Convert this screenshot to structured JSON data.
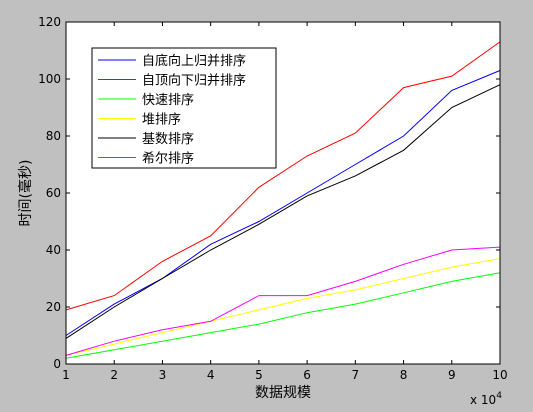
{
  "window": {
    "background": "#c0c0c0",
    "plot_background": "#ffffff"
  },
  "chart_data": {
    "type": "line",
    "title": "",
    "xlabel": "数据规模",
    "ylabel": "时间(毫秒)",
    "x_multiplier_base": "x 10",
    "x_multiplier_exp": "4",
    "x": [
      1,
      2,
      3,
      4,
      5,
      6,
      7,
      8,
      9,
      10
    ],
    "xlim": [
      1,
      10
    ],
    "ylim": [
      0,
      120
    ],
    "xticks": [
      1,
      2,
      3,
      4,
      5,
      6,
      7,
      8,
      9,
      10
    ],
    "yticks": [
      0,
      20,
      40,
      60,
      80,
      100,
      120
    ],
    "grid": false,
    "legend_position": "top-left",
    "series": [
      {
        "name": "自底向上归并排序",
        "color": "#0000ff",
        "values": [
          10,
          21,
          30,
          42,
          50,
          60,
          70,
          80,
          96,
          103
        ]
      },
      {
        "name": "自顶向下归并排序",
        "color": "#ff0000",
        "values": [
          19,
          24,
          36,
          45,
          62,
          73,
          81,
          97,
          101,
          113
        ]
      },
      {
        "name": "快速排序",
        "color": "#00ff00",
        "values": [
          2,
          5,
          8,
          11,
          14,
          18,
          21,
          25,
          29,
          32
        ]
      },
      {
        "name": "堆排序",
        "color": "#ffff00",
        "values": [
          3,
          7,
          11,
          15,
          19,
          23,
          26,
          30,
          34,
          37
        ]
      },
      {
        "name": "基数排序",
        "color": "#000000",
        "values": [
          9,
          20,
          30,
          40,
          49,
          59,
          66,
          75,
          90,
          98
        ]
      },
      {
        "name": "希尔排序",
        "color": "#ff00ff",
        "values": [
          3,
          8,
          12,
          15,
          24,
          24,
          29,
          35,
          40,
          41
        ]
      }
    ]
  }
}
